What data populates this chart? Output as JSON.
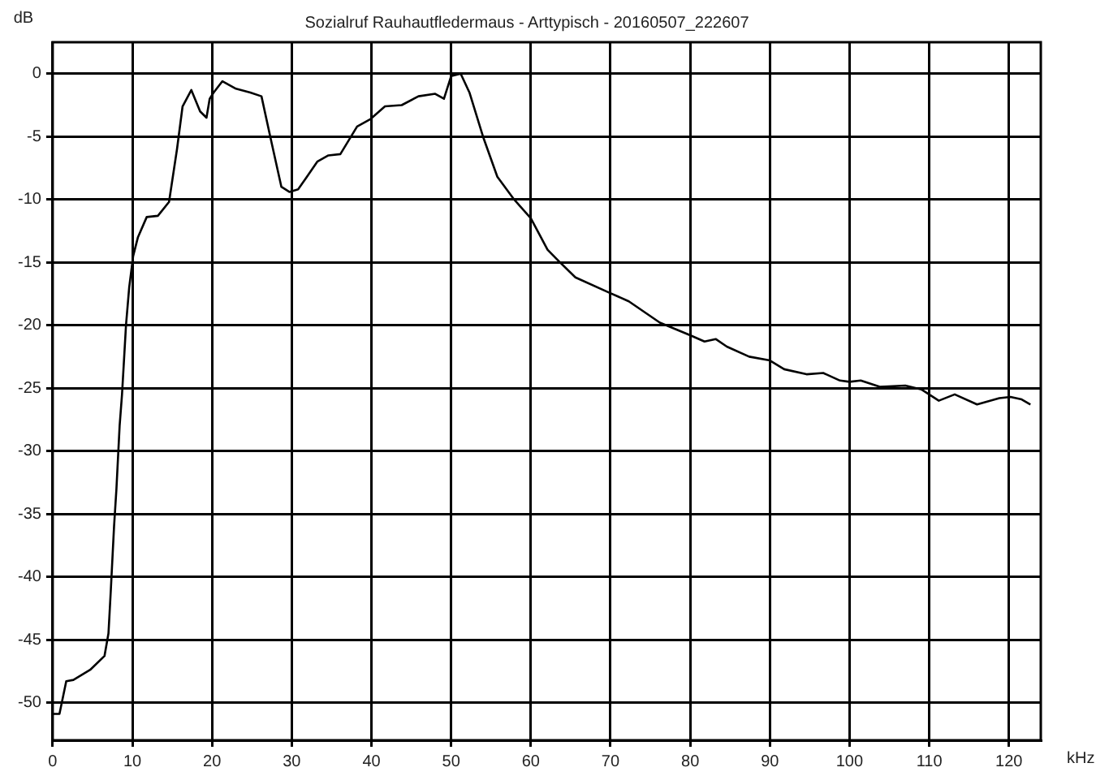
{
  "chart_data": {
    "type": "line",
    "title": "Sozialruf Rauhautfledermaus - Arttypisch - 20160507_222607",
    "xlabel": "kHz",
    "ylabel": "dB",
    "x": [
      0,
      0.85,
      1.7,
      2.6,
      4.7,
      6.5,
      7.0,
      7.3,
      7.7,
      8.0,
      8.4,
      8.7,
      9.2,
      9.6,
      10.1,
      10.7,
      11.8,
      13.2,
      14.6,
      15.6,
      16.3,
      17.4,
      18.5,
      19.3,
      19.7,
      20.2,
      21.3,
      23,
      24.8,
      26.2,
      27.3,
      28.7,
      29.7,
      30.8,
      31.8,
      33.2,
      34.6,
      36.1,
      38.2,
      39.9,
      41.7,
      43.8,
      45.9,
      48,
      49.1,
      50,
      51.2,
      52.3,
      54,
      55.8,
      57.9,
      60,
      62.1,
      63.5,
      65.6,
      69.8,
      72.3,
      76.2,
      80,
      81.8,
      83.2,
      84.6,
      87.4,
      90,
      91.8,
      94.6,
      96.7,
      98.8,
      100,
      101.4,
      103.8,
      107,
      109,
      111.2,
      113.2,
      116,
      118.8,
      120.2,
      121.6,
      122.7
    ],
    "series": [
      {
        "color": "#000000",
        "values": [
          -50.9,
          -50.9,
          -48.3,
          -48.2,
          -47.4,
          -46.3,
          -44.5,
          -41,
          -36,
          -33,
          -28,
          -25.5,
          -20,
          -17,
          -14.5,
          -13,
          -11.4,
          -11.3,
          -10.2,
          -6,
          -2.6,
          -1.3,
          -3,
          -3.5,
          -2,
          -1.5,
          -0.6,
          -1.2,
          -1.5,
          -1.8,
          -5,
          -9,
          -9.4,
          -9.2,
          -8.3,
          -7,
          -6.5,
          -6.4,
          -4.2,
          -3.6,
          -2.6,
          -2.5,
          -1.8,
          -1.6,
          -2,
          -0.2,
          0,
          -1.5,
          -5,
          -8.2,
          -10,
          -11.5,
          -14,
          -14.9,
          -16.2,
          -17.4,
          -18.1,
          -19.8,
          -20.8,
          -21.3,
          -21.1,
          -21.7,
          -22.5,
          -22.8,
          -23.5,
          -23.9,
          -23.8,
          -24.4,
          -24.5,
          -24.4,
          -24.9,
          -24.8,
          -25.1,
          -26,
          -25.5,
          -26.3,
          -25.8,
          -25.7,
          -25.9,
          -26.3
        ]
      }
    ],
    "xlim": [
      0,
      124
    ],
    "ylim": [
      -53,
      2.5
    ],
    "xticks": [
      0,
      10,
      20,
      30,
      40,
      50,
      60,
      70,
      80,
      90,
      100,
      110,
      120
    ],
    "yticks": [
      0,
      -5,
      -10,
      -15,
      -20,
      -25,
      -30,
      -35,
      -40,
      -45,
      -50
    ],
    "grid": true,
    "legend": false,
    "marker": "none",
    "line_style": "solid"
  }
}
